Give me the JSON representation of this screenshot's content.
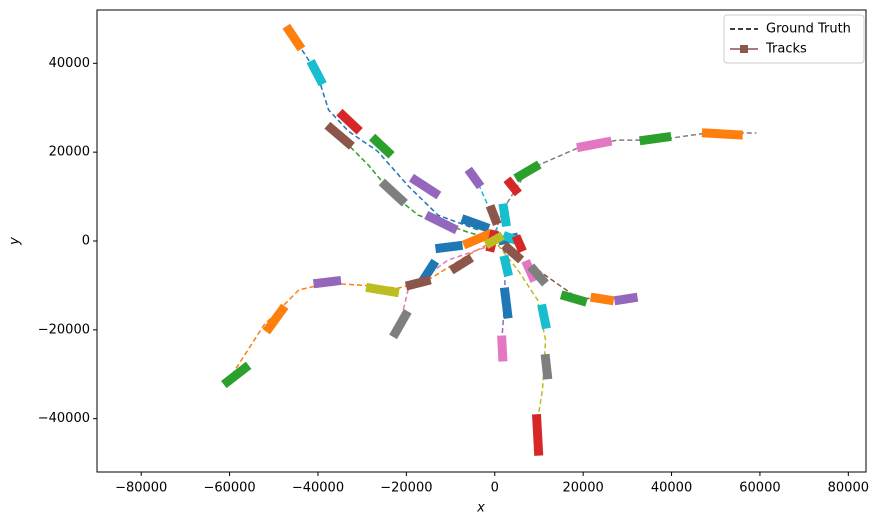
{
  "chart_data": {
    "type": "line",
    "xlabel": "x",
    "ylabel": "y",
    "xlim": [
      -90000,
      84000
    ],
    "ylim": [
      -52000,
      52000
    ],
    "xticks": [
      {
        "value": -80000,
        "label": "−80000"
      },
      {
        "value": -60000,
        "label": "−60000"
      },
      {
        "value": -40000,
        "label": "−40000"
      },
      {
        "value": -20000,
        "label": "−20000"
      },
      0,
      20000,
      40000,
      60000,
      80000
    ],
    "yticks": [
      {
        "value": -40000,
        "label": "−40000"
      },
      {
        "value": -20000,
        "label": "−20000"
      },
      0,
      20000,
      40000
    ],
    "legend": [
      {
        "name": "Ground Truth",
        "color": "#000000",
        "style": "dashed"
      },
      {
        "name": "Tracks",
        "color": "#8c564b",
        "marker": "square"
      }
    ],
    "ground_truth": [
      {
        "color": "#1f77b4",
        "x": [
          -46600,
          -40300,
          -37600,
          -33100,
          -26500,
          -19600,
          -12800,
          -3800
        ],
        "y": [
          47500,
          38000,
          29500,
          24700,
          20200,
          12400,
          5800,
          2500
        ]
      },
      {
        "color": "#2ca02c",
        "x": [
          -36500,
          -28600,
          -23000,
          -17300,
          -6100,
          -1600
        ],
        "y": [
          25000,
          17100,
          10400,
          5800,
          2000,
          700
        ]
      },
      {
        "color": "#ff7f0e",
        "x": [
          -60500,
          -52200,
          -44300,
          -37600,
          -30800,
          -21800,
          -15100,
          -6100,
          -500
        ],
        "y": [
          -31700,
          -18900,
          -11000,
          -9500,
          -9900,
          -10600,
          -8800,
          -3200,
          -200
        ]
      },
      {
        "color": "#7f7f7f",
        "x": [
          -500,
          1800,
          7400,
          18700,
          27700,
          36700,
          47900,
          59200
        ],
        "y": [
          200,
          6900,
          16000,
          20900,
          22700,
          22700,
          24300,
          24300
        ]
      },
      {
        "color": "#bcbd22",
        "x": [
          700,
          5200,
          9700,
          11500,
          10800,
          9700,
          9900
        ],
        "y": [
          -900,
          -6500,
          -13300,
          -22300,
          -33500,
          -40300,
          -47000
        ]
      },
      {
        "color": "#9467bd",
        "x": [
          2300,
          2300,
          1400
        ],
        "y": [
          -1600,
          -13300,
          -24500
        ]
      },
      {
        "color": "#8c564b",
        "x": [
          1800,
          9700,
          18700,
          27700
        ],
        "y": [
          -2000,
          -6500,
          -12800,
          -13300
        ]
      },
      {
        "color": "#e377c2",
        "x": [
          -500,
          -10600,
          -15100,
          -19600,
          -21800
        ],
        "y": [
          -900,
          -4300,
          -7600,
          -11000,
          -20000
        ]
      },
      {
        "color": "#17becf",
        "x": [
          200,
          700,
          -1600,
          -4300
        ],
        "y": [
          200,
          4700,
          8100,
          14200
        ]
      }
    ],
    "tracks": [
      {
        "color": "#ff7f0e",
        "x": [
          -46600,
          -44300
        ],
        "y": [
          47500,
          44100
        ]
      },
      {
        "color": "#17becf",
        "x": [
          -41200,
          -39400
        ],
        "y": [
          39600,
          36200
        ]
      },
      {
        "color": "#d62728",
        "x": [
          -34400,
          -31300
        ],
        "y": [
          28300,
          25400
        ]
      },
      {
        "color": "#8c564b",
        "x": [
          -37100,
          -33100
        ],
        "y": [
          25400,
          22000
        ]
      },
      {
        "color": "#2ca02c",
        "x": [
          -27000,
          -24100
        ],
        "y": [
          22700,
          20000
        ]
      },
      {
        "color": "#9467bd",
        "x": [
          -18000,
          -13500
        ],
        "y": [
          13700,
          10800
        ]
      },
      {
        "color": "#7f7f7f",
        "x": [
          -24800,
          -21100
        ],
        "y": [
          12600,
          9200
        ]
      },
      {
        "color": "#9467bd",
        "x": [
          -14600,
          -9500
        ],
        "y": [
          5400,
          2900
        ]
      },
      {
        "color": "#1f77b4",
        "x": [
          -6500,
          -2300
        ],
        "y": [
          4700,
          3200
        ]
      },
      {
        "color": "#9467bd",
        "x": [
          -5400,
          -3800
        ],
        "y": [
          15300,
          13100
        ]
      },
      {
        "color": "#d62728",
        "x": [
          3400,
          4700
        ],
        "y": [
          13100,
          11500
        ]
      },
      {
        "color": "#2ca02c",
        "x": [
          5600,
          9200
        ],
        "y": [
          14600,
          16700
        ]
      },
      {
        "color": "#e377c2",
        "x": [
          19600,
          25400
        ],
        "y": [
          21200,
          22300
        ]
      },
      {
        "color": "#2ca02c",
        "x": [
          33800,
          38900
        ],
        "y": [
          22700,
          23400
        ]
      },
      {
        "color": "#ff7f0e",
        "x": [
          47900,
          55100
        ],
        "y": [
          24300,
          23900
        ]
      },
      {
        "color": "#17becf",
        "x": [
          2000,
          2500
        ],
        "y": [
          7400,
          4300
        ]
      },
      {
        "color": "#8c564b",
        "x": [
          -700,
          200
        ],
        "y": [
          7000,
          4700
        ]
      },
      {
        "color": "#ff7f0e",
        "x": [
          -6100,
          -1600
        ],
        "y": [
          -500,
          1400
        ]
      },
      {
        "color": "#1f77b4",
        "x": [
          -12400,
          -8300
        ],
        "y": [
          -1600,
          -1100
        ]
      },
      {
        "color": "#8c564b",
        "x": [
          -9000,
          -6100
        ],
        "y": [
          -6100,
          -4300
        ]
      },
      {
        "color": "#1f77b4",
        "x": [
          -16200,
          -14000
        ],
        "y": [
          -8800,
          -5400
        ]
      },
      {
        "color": "#8c564b",
        "x": [
          -19100,
          -15500
        ],
        "y": [
          -9900,
          -9000
        ]
      },
      {
        "color": "#bcbd22",
        "x": [
          -28100,
          -22700
        ],
        "y": [
          -10600,
          -11500
        ]
      },
      {
        "color": "#9467bd",
        "x": [
          -40000,
          -35800
        ],
        "y": [
          -9500,
          -9000
        ]
      },
      {
        "color": "#7f7f7f",
        "x": [
          -22500,
          -20200
        ],
        "y": [
          -20700,
          -16700
        ]
      },
      {
        "color": "#ff7f0e",
        "x": [
          -51100,
          -48100
        ],
        "y": [
          -19600,
          -15500
        ]
      },
      {
        "color": "#2ca02c",
        "x": [
          -60500,
          -56500
        ],
        "y": [
          -31700,
          -28600
        ]
      },
      {
        "color": "#d62728",
        "x": [
          -900,
          -200
        ],
        "y": [
          -1400,
          1400
        ]
      },
      {
        "color": "#1f77b4",
        "x": [
          1800,
          4300
        ],
        "y": [
          200,
          700
        ]
      },
      {
        "color": "#17becf",
        "x": [
          2900,
          4700
        ],
        "y": [
          900,
          200
        ]
      },
      {
        "color": "#bcbd22",
        "x": [
          -1100,
          900
        ],
        "y": [
          -400,
          700
        ]
      },
      {
        "color": "#17becf",
        "x": [
          2300,
          2900
        ],
        "y": [
          -4300,
          -6900
        ]
      },
      {
        "color": "#8c564b",
        "x": [
          2900,
          5200
        ],
        "y": [
          -1600,
          -3600
        ]
      },
      {
        "color": "#d62728",
        "x": [
          5200,
          5900
        ],
        "y": [
          200,
          -1400
        ]
      },
      {
        "color": "#e377c2",
        "x": [
          7400,
          8600
        ],
        "y": [
          -5400,
          -8100
        ]
      },
      {
        "color": "#7f7f7f",
        "x": [
          8800,
          10800
        ],
        "y": [
          -6500,
          -8800
        ]
      },
      {
        "color": "#2ca02c",
        "x": [
          16000,
          19800
        ],
        "y": [
          -12400,
          -13500
        ]
      },
      {
        "color": "#ff7f0e",
        "x": [
          22700,
          25900
        ],
        "y": [
          -12800,
          -13300
        ]
      },
      {
        "color": "#9467bd",
        "x": [
          28100,
          31300
        ],
        "y": [
          -13300,
          -12800
        ]
      },
      {
        "color": "#1f77b4",
        "x": [
          2300,
          2900
        ],
        "y": [
          -11500,
          -16400
        ]
      },
      {
        "color": "#17becf",
        "x": [
          10800,
          11500
        ],
        "y": [
          -15300,
          -18700
        ]
      },
      {
        "color": "#e377c2",
        "x": [
          1600,
          1800
        ],
        "y": [
          -22300,
          -26100
        ]
      },
      {
        "color": "#7f7f7f",
        "x": [
          11500,
          11900
        ],
        "y": [
          -26500,
          -30100
        ]
      },
      {
        "color": "#d62728",
        "x": [
          9500,
          9900
        ],
        "y": [
          -40000,
          -47300
        ]
      }
    ]
  }
}
